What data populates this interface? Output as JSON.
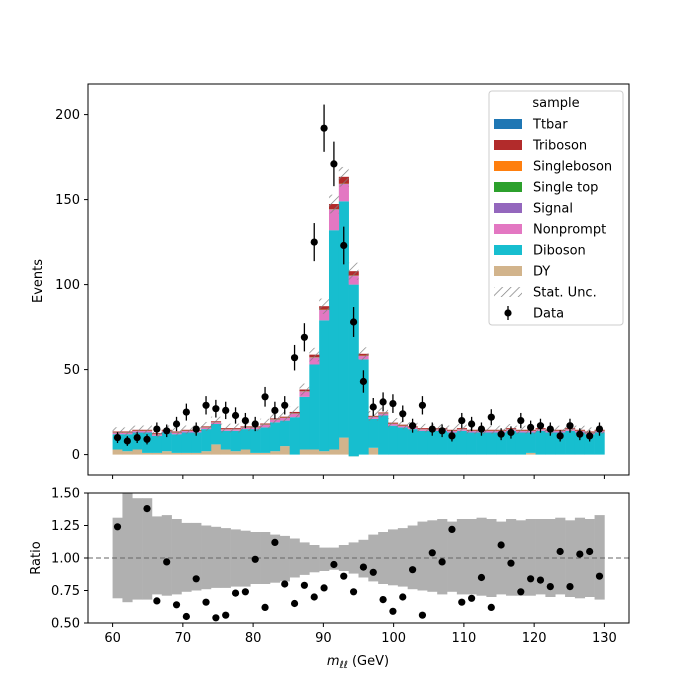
{
  "chart_data": [
    {
      "type": "bar",
      "panel": "main",
      "ylabel": "Events",
      "xlim": [
        56.5,
        133.5
      ],
      "ylim": [
        -12,
        218
      ],
      "yticks": [
        0,
        50,
        100,
        150,
        200
      ],
      "bin_edges": [
        60,
        61.4,
        62.8,
        64.2,
        65.6,
        67,
        68.4,
        69.8,
        71.2,
        72.6,
        74,
        75.4,
        76.8,
        78.2,
        79.6,
        81,
        82.4,
        83.8,
        85.2,
        86.6,
        88,
        89.4,
        90.8,
        92.2,
        93.6,
        95,
        96.4,
        97.8,
        99.2,
        100.6,
        102,
        103.4,
        104.8,
        106.2,
        107.6,
        109,
        110.4,
        111.8,
        113.2,
        114.6,
        116,
        117.4,
        118.8,
        120.2,
        121.6,
        123,
        124.4,
        125.8,
        127.2,
        128.6,
        130
      ],
      "series": [
        {
          "name": "DY",
          "color": "#d2b48c",
          "values": [
            3,
            2,
            3,
            1,
            1,
            2,
            1,
            1,
            1,
            2,
            6,
            3,
            2,
            3,
            1,
            1,
            2,
            5,
            0,
            3,
            3,
            2,
            3,
            10,
            -1,
            0,
            4,
            0,
            0,
            0,
            0,
            0,
            0,
            0,
            0,
            0,
            0,
            0,
            0,
            0,
            0,
            0,
            1,
            0,
            0,
            0,
            0,
            0,
            0,
            0
          ]
        },
        {
          "name": "Diboson",
          "color": "#17becf",
          "values": [
            9,
            10,
            10,
            12,
            10,
            11,
            11,
            12,
            12,
            13,
            12,
            11,
            12,
            12,
            14,
            15,
            17,
            15,
            22,
            31,
            50,
            77,
            129,
            139,
            101,
            56,
            17,
            23,
            17,
            16,
            15,
            14,
            14,
            14,
            13,
            14,
            13,
            13,
            13,
            13,
            14,
            13,
            12,
            14,
            13,
            13,
            14,
            13,
            12,
            13
          ]
        },
        {
          "name": "Nonprompt",
          "color": "#e377c2",
          "values": [
            0.8,
            0.8,
            0.8,
            0.8,
            0.8,
            0.8,
            0.8,
            0.8,
            0.8,
            0.8,
            0.8,
            0.8,
            0.8,
            0.8,
            0.8,
            1.5,
            1.5,
            1.5,
            2,
            3,
            4,
            6,
            12,
            10,
            5,
            2,
            1,
            1,
            1,
            0.8,
            0.8,
            0.8,
            0.8,
            0.8,
            0.8,
            0.8,
            0.8,
            0.8,
            0.8,
            0.8,
            0.8,
            0.8,
            0.8,
            0.8,
            0.8,
            0.8,
            0.8,
            0.8,
            0.8,
            0.8
          ]
        },
        {
          "name": "Signal",
          "color": "#9467bd",
          "values": [
            0.1,
            0.1,
            0.1,
            0.1,
            0.1,
            0.1,
            0.1,
            0.1,
            0.1,
            0.1,
            0.1,
            0.1,
            0.1,
            0.1,
            0.1,
            0.1,
            0.1,
            0.1,
            0.1,
            0.1,
            0.1,
            0.1,
            0.2,
            0.2,
            0.2,
            0.1,
            0.1,
            0.1,
            0.1,
            0.1,
            0.1,
            0.1,
            0.1,
            0.1,
            0.1,
            0.1,
            0.1,
            0.1,
            0.1,
            0.1,
            0.1,
            0.1,
            0.1,
            0.1,
            0.1,
            0.1,
            0.1,
            0.1,
            0.1,
            0.1
          ]
        },
        {
          "name": "Single top",
          "color": "#2ca02c",
          "values": [
            0.1,
            0.1,
            0.1,
            0.1,
            0.1,
            0.1,
            0.1,
            0.1,
            0.1,
            0.1,
            0.1,
            0.1,
            0.1,
            0.1,
            0.1,
            0.1,
            0.1,
            0.1,
            0.1,
            0.1,
            0.1,
            0.1,
            0.1,
            0.1,
            0.1,
            0.1,
            0.1,
            0.1,
            0.1,
            0.1,
            0.1,
            0.1,
            0.1,
            0.1,
            0.1,
            0.1,
            0.1,
            0.1,
            0.1,
            0.1,
            0.1,
            0.1,
            0.1,
            0.1,
            0.1,
            0.1,
            0.1,
            0.1,
            0.1,
            0.1
          ]
        },
        {
          "name": "Singleboson",
          "color": "#ff7f0e",
          "values": [
            0.1,
            0.1,
            0.1,
            0.1,
            0.1,
            0.1,
            0.1,
            0.1,
            0.1,
            0.1,
            0.1,
            0.1,
            0.1,
            0.1,
            0.1,
            0.1,
            0.1,
            0.1,
            0.1,
            0.1,
            0.1,
            0.1,
            0.1,
            0.1,
            0.1,
            0.1,
            0.1,
            0.1,
            0.1,
            0.1,
            0.1,
            0.1,
            0.1,
            0.1,
            0.1,
            0.1,
            0.1,
            0.1,
            0.1,
            0.1,
            0.1,
            0.1,
            0.1,
            0.1,
            0.1,
            0.1,
            0.1,
            0.1,
            0.1,
            0.1
          ]
        },
        {
          "name": "Triboson",
          "color": "#b22b2b",
          "values": [
            0.5,
            0.5,
            0.5,
            0.5,
            0.5,
            0.5,
            0.5,
            0.5,
            0.5,
            0.5,
            0.5,
            0.5,
            0.5,
            0.5,
            0.5,
            0.5,
            0.5,
            0.5,
            0.8,
            1,
            1.5,
            2,
            3,
            4,
            2.5,
            1,
            0.5,
            0.5,
            0.5,
            0.5,
            0.5,
            0.5,
            0.5,
            0.5,
            0.5,
            0.5,
            0.5,
            0.5,
            0.5,
            0.5,
            0.5,
            0.5,
            0.5,
            0.5,
            0.5,
            0.5,
            0.5,
            0.5,
            0.5,
            0.5
          ]
        },
        {
          "name": "Ttbar",
          "color": "#1f77b4",
          "values": [
            0,
            0,
            0,
            0,
            0,
            0,
            0,
            0,
            0,
            0,
            0,
            0,
            0,
            0,
            0,
            0,
            0,
            0,
            0,
            0,
            0,
            0,
            0,
            0,
            0,
            0,
            0,
            0,
            0,
            0,
            0,
            0,
            0,
            0,
            0,
            0,
            0,
            0,
            0,
            0,
            0,
            0,
            0,
            0,
            0,
            0,
            0,
            0,
            0,
            0
          ]
        }
      ],
      "stat_unc": {
        "name": "Stat. Unc.",
        "halfwidth": [
          2.5,
          2.4,
          2.4,
          2.5,
          2.4,
          2.5,
          2.4,
          2.5,
          2.5,
          2.6,
          2.7,
          2.6,
          2.6,
          2.7,
          2.7,
          2.8,
          3,
          3,
          3.2,
          3.5,
          4,
          4.5,
          5.5,
          5.8,
          5,
          3.8,
          2.8,
          2.8,
          2.7,
          2.6,
          2.5,
          2.5,
          2.5,
          2.5,
          2.5,
          2.5,
          2.5,
          2.4,
          2.4,
          2.4,
          2.4,
          2.4,
          2.4,
          2.4,
          2.4,
          2.4,
          2.4,
          2.4,
          2.4,
          2.4
        ]
      },
      "data": {
        "name": "Data",
        "x": [
          60.7,
          62.1,
          63.5,
          64.9,
          66.3,
          67.7,
          69.1,
          70.5,
          71.9,
          73.3,
          74.7,
          76.1,
          77.5,
          78.9,
          80.3,
          81.7,
          83.1,
          84.5,
          85.9,
          87.3,
          88.7,
          90.1,
          91.5,
          92.9,
          94.3,
          95.7,
          97.1,
          98.5,
          99.9,
          101.3,
          102.7,
          104.1,
          105.5,
          106.9,
          108.3,
          109.7,
          111.1,
          112.5,
          113.9,
          115.3,
          116.7,
          118.1,
          119.5,
          120.9,
          122.3,
          123.7,
          125.1,
          126.5,
          127.9,
          129.3
        ],
        "y": [
          10,
          8,
          10,
          9,
          15,
          14,
          18,
          25,
          15,
          29,
          27,
          26,
          23,
          20,
          18,
          34,
          26,
          29,
          57,
          69,
          125,
          192,
          171,
          123,
          78,
          43,
          28,
          31,
          30,
          24,
          17,
          29,
          15,
          14,
          11,
          20,
          18,
          15,
          22,
          12,
          13,
          20,
          16,
          17,
          15,
          11,
          17,
          12,
          11,
          15
        ],
        "err": [
          3.2,
          2.9,
          3.2,
          3.0,
          3.9,
          3.7,
          4.2,
          5.0,
          3.9,
          5.4,
          5.2,
          5.1,
          4.8,
          4.5,
          4.2,
          5.8,
          5.1,
          5.4,
          7.5,
          8.3,
          11.2,
          13.9,
          13.1,
          11.1,
          8.8,
          6.6,
          5.3,
          5.6,
          5.5,
          4.9,
          4.1,
          5.4,
          3.9,
          3.7,
          3.3,
          4.5,
          4.2,
          3.9,
          4.7,
          3.5,
          3.6,
          4.5,
          4.0,
          4.1,
          3.9,
          3.3,
          4.1,
          3.5,
          3.3,
          3.9
        ]
      },
      "legend": {
        "title": "sample",
        "placement": "top-right",
        "entries": [
          "Ttbar",
          "Triboson",
          "Singleboson",
          "Single top",
          "Signal",
          "Nonprompt",
          "Diboson",
          "DY",
          "Stat. Unc.",
          "Data"
        ]
      }
    },
    {
      "type": "scatter",
      "panel": "ratio",
      "xlabel": "m_{ℓℓ} (GeV)",
      "ylabel": "Ratio",
      "xlim": [
        56.5,
        133.5
      ],
      "ylim": [
        0.5,
        1.5
      ],
      "yticks": [
        "0.50",
        "0.75",
        "1.00",
        "1.25",
        "1.50"
      ],
      "xticks": [
        60,
        70,
        80,
        90,
        100,
        110,
        120,
        130
      ],
      "reference_line": 1.0,
      "band_lo": [
        0.69,
        0.66,
        0.68,
        0.68,
        0.72,
        0.71,
        0.72,
        0.74,
        0.75,
        0.76,
        0.77,
        0.77,
        0.78,
        0.78,
        0.8,
        0.8,
        0.81,
        0.82,
        0.85,
        0.87,
        0.89,
        0.9,
        0.91,
        0.9,
        0.88,
        0.85,
        0.82,
        0.8,
        0.79,
        0.78,
        0.76,
        0.75,
        0.74,
        0.72,
        0.74,
        0.72,
        0.72,
        0.71,
        0.7,
        0.72,
        0.71,
        0.71,
        0.71,
        0.72,
        0.7,
        0.72,
        0.7,
        0.69,
        0.7,
        0.68
      ],
      "band_hi": [
        1.31,
        1.5,
        1.46,
        1.46,
        1.32,
        1.33,
        1.3,
        1.27,
        1.27,
        1.25,
        1.24,
        1.23,
        1.22,
        1.21,
        1.2,
        1.2,
        1.18,
        1.17,
        1.15,
        1.12,
        1.1,
        1.08,
        1.08,
        1.1,
        1.12,
        1.14,
        1.18,
        1.2,
        1.22,
        1.23,
        1.25,
        1.28,
        1.29,
        1.3,
        1.28,
        1.3,
        1.3,
        1.31,
        1.3,
        1.28,
        1.3,
        1.29,
        1.3,
        1.3,
        1.3,
        1.31,
        1.29,
        1.31,
        1.3,
        1.33
      ],
      "ratio": [
        1.24,
        null,
        null,
        1.38,
        0.67,
        0.97,
        0.64,
        0.55,
        0.84,
        0.66,
        0.54,
        0.56,
        0.73,
        0.74,
        0.99,
        0.62,
        1.12,
        0.8,
        0.65,
        0.79,
        0.7,
        0.77,
        0.95,
        0.86,
        0.74,
        0.93,
        0.89,
        0.68,
        0.59,
        0.7,
        0.91,
        0.56,
        1.04,
        0.97,
        1.22,
        0.66,
        0.69,
        0.85,
        0.62,
        1.1,
        0.96,
        0.74,
        0.84,
        0.83,
        0.78,
        1.05,
        0.78,
        1.03,
        1.05,
        0.86
      ]
    }
  ]
}
